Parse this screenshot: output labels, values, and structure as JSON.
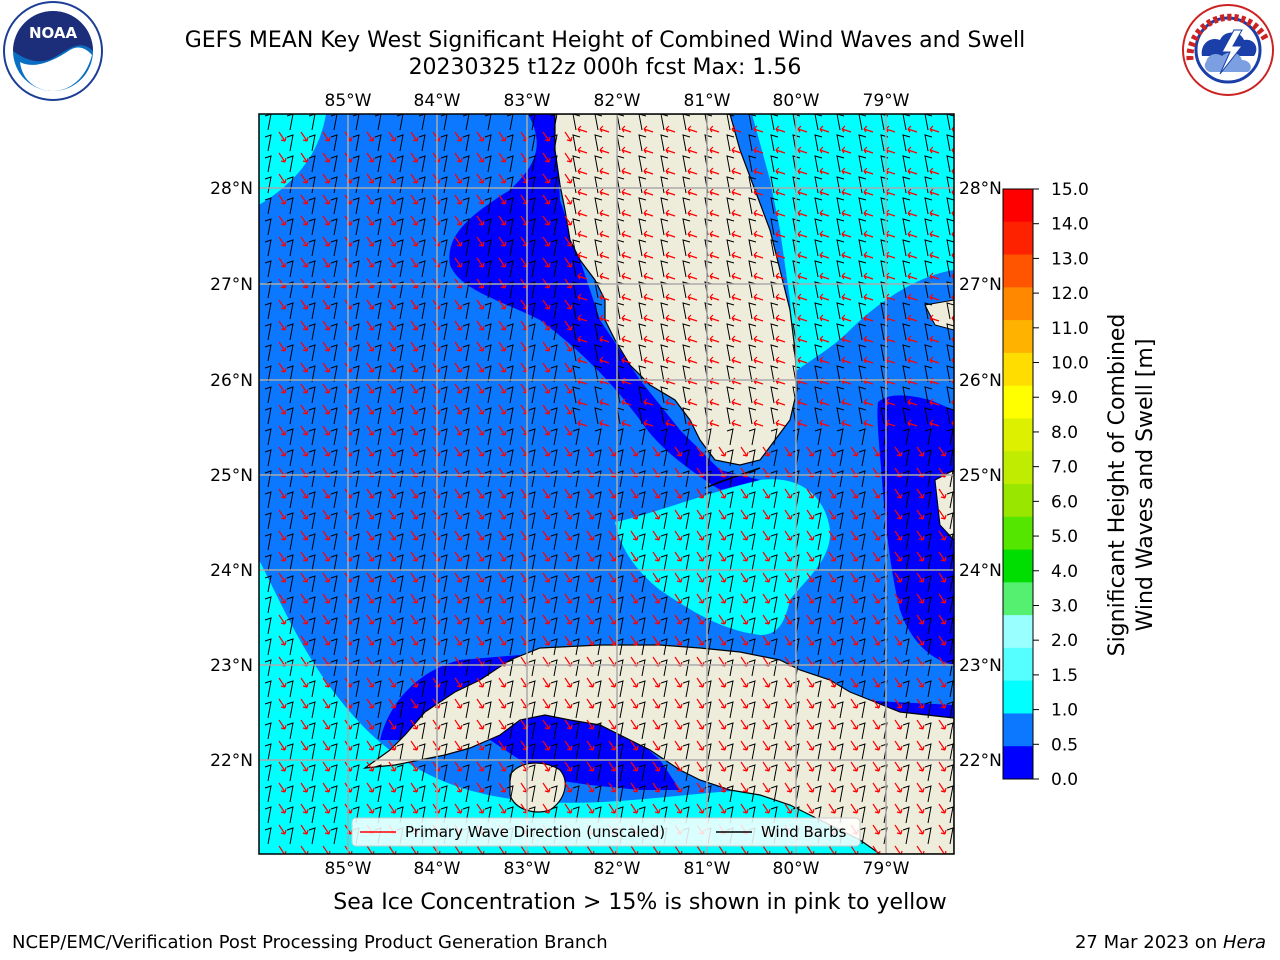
{
  "header": {
    "title_line1": "GEFS MEAN Key West Significant Height of Combined Wind Waves and Swell",
    "title_line2": "20230325 t12z 000h fcst   Max: 1.56",
    "left_logo": "noaa-logo",
    "right_logo": "national-weather-service-logo",
    "noaa_logo_text": "NOAA"
  },
  "map": {
    "lon_labels": [
      "85°W",
      "84°W",
      "83°W",
      "82°W",
      "81°W",
      "80°W",
      "79°W"
    ],
    "lat_labels": [
      "28°N",
      "27°N",
      "26°N",
      "25°N",
      "24°N",
      "23°N",
      "22°N"
    ],
    "legend": {
      "primary_wave_label": "Primary Wave Direction (unscaled)",
      "wind_barbs_label": "Wind Barbs",
      "primary_wave_color": "#ff0000",
      "wind_barbs_color": "#000000"
    },
    "colors": {
      "land": "#eeeddc",
      "band_0_05": "#0000ff",
      "band_05_10": "#0b78ff",
      "band_10_15": "#00ffff",
      "grid": "#aaaaaa"
    }
  },
  "colorbar": {
    "label_line1": "Significant Height of Combined",
    "label_line2": "Wind Waves and Swell [m]",
    "ticks": [
      "15.0",
      "14.0",
      "13.0",
      "12.0",
      "11.0",
      "10.0",
      "9.0",
      "8.0",
      "7.0",
      "6.0",
      "5.0",
      "4.0",
      "3.0",
      "2.0",
      "1.5",
      "1.0",
      "0.5",
      "0.0"
    ],
    "colors": [
      "#ff0000",
      "#ff2200",
      "#ff5500",
      "#ff8800",
      "#ffb300",
      "#ffdd00",
      "#ffff00",
      "#ddf000",
      "#bfec00",
      "#99e600",
      "#55e600",
      "#00dd00",
      "#55f070",
      "#99ffff",
      "#55ffff",
      "#00ffff",
      "#0b78ff",
      "#0000ff"
    ]
  },
  "captions": {
    "sea_ice_note": "Sea Ice Concentration > 15% is shown in pink to yellow",
    "branch": "NCEP/EMC/Verification Post Processing Product Generation Branch",
    "date_prefix": "27 Mar 2023 on ",
    "host": "Hera"
  }
}
